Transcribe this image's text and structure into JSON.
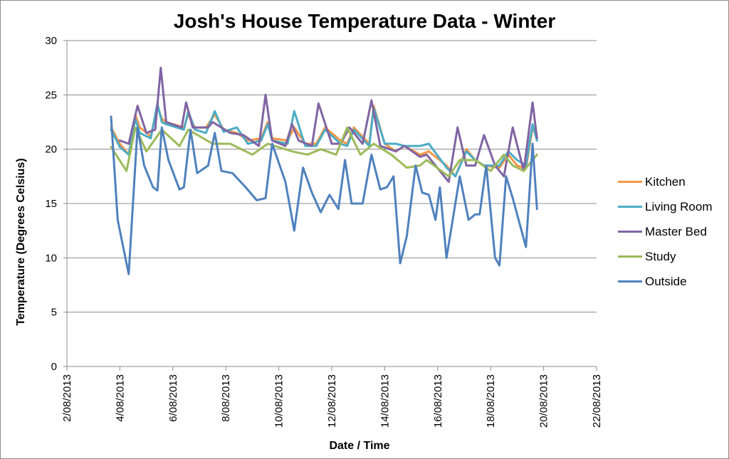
{
  "chart_data": {
    "type": "line",
    "title": "Josh's House Temperature Data - Winter",
    "xlabel": "Date / Time",
    "ylabel": "Temperature (Degrees Celsius)",
    "ylim": [
      0,
      30
    ],
    "yticks": [
      0,
      5,
      10,
      15,
      20,
      25,
      30
    ],
    "xlim": [
      "2013-08-02",
      "2013-08-22"
    ],
    "xtick_labels": [
      "2/08/2013",
      "4/08/2013",
      "6/08/2013",
      "8/08/2013",
      "10/08/2013",
      "12/08/2013",
      "14/08/2013",
      "16/08/2013",
      "18/08/2013",
      "20/08/2013",
      "22/08/2013"
    ],
    "grid": "horizontal",
    "legend": "right",
    "series": [
      {
        "name": "Kitchen",
        "color": "#f79646",
        "x": [
          "2013-08-03 16:00",
          "2013-08-04 00:00",
          "2013-08-04 08:00",
          "2013-08-04 14:00",
          "2013-08-04 18:00",
          "2013-08-05 04:00",
          "2013-08-05 10:00",
          "2013-08-05 14:00",
          "2013-08-05 18:00",
          "2013-08-06 10:00",
          "2013-08-06 14:00",
          "2013-08-06 20:00",
          "2013-08-07 06:00",
          "2013-08-07 14:00",
          "2013-08-07 22:00",
          "2013-08-08 10:00",
          "2013-08-08 20:00",
          "2013-08-09 08:00",
          "2013-08-09 14:00",
          "2013-08-09 18:00",
          "2013-08-10 08:00",
          "2013-08-10 14:00",
          "2013-08-11 00:00",
          "2013-08-11 10:00",
          "2013-08-11 18:00",
          "2013-08-12 08:00",
          "2013-08-12 14:00",
          "2013-08-12 20:00",
          "2013-08-13 10:00",
          "2013-08-13 14:00",
          "2013-08-14 00:00",
          "2013-08-14 10:00",
          "2013-08-14 18:00",
          "2013-08-15 08:00",
          "2013-08-15 16:00",
          "2013-08-16 08:00",
          "2013-08-16 16:00",
          "2013-08-17 02:00",
          "2013-08-17 10:00",
          "2013-08-17 18:00",
          "2013-08-18 08:00",
          "2013-08-18 16:00",
          "2013-08-19 00:00",
          "2013-08-19 08:00",
          "2013-08-19 14:00",
          "2013-08-19 18:00"
        ],
        "y": [
          22.0,
          20.5,
          19.5,
          23.2,
          22.0,
          21.2,
          24.0,
          22.8,
          22.5,
          22.0,
          23.2,
          22.0,
          22.0,
          23.2,
          21.8,
          21.5,
          20.8,
          21.0,
          22.5,
          21.0,
          20.8,
          22.0,
          20.5,
          20.5,
          22.0,
          20.8,
          20.5,
          22.0,
          20.5,
          24.0,
          20.5,
          19.8,
          20.3,
          19.5,
          19.8,
          18.5,
          17.5,
          20.0,
          19.0,
          18.5,
          18.3,
          19.5,
          18.5,
          18.2,
          22.0,
          21.0
        ]
      },
      {
        "name": "Living Room",
        "color": "#4bacc6",
        "x": [
          "2013-08-03 16:00",
          "2013-08-04 00:00",
          "2013-08-04 08:00",
          "2013-08-04 14:00",
          "2013-08-04 18:00",
          "2013-08-05 04:00",
          "2013-08-05 10:00",
          "2013-08-05 14:00",
          "2013-08-05 18:00",
          "2013-08-06 10:00",
          "2013-08-06 14:00",
          "2013-08-06 20:00",
          "2013-08-07 06:00",
          "2013-08-07 14:00",
          "2013-08-07 22:00",
          "2013-08-08 10:00",
          "2013-08-08 20:00",
          "2013-08-09 08:00",
          "2013-08-09 14:00",
          "2013-08-09 18:00",
          "2013-08-10 08:00",
          "2013-08-10 14:00",
          "2013-08-11 00:00",
          "2013-08-11 10:00",
          "2013-08-11 18:00",
          "2013-08-12 08:00",
          "2013-08-12 14:00",
          "2013-08-12 20:00",
          "2013-08-13 10:00",
          "2013-08-13 14:00",
          "2013-08-14 00:00",
          "2013-08-14 10:00",
          "2013-08-14 18:00",
          "2013-08-15 08:00",
          "2013-08-15 16:00",
          "2013-08-16 08:00",
          "2013-08-16 16:00",
          "2013-08-17 02:00",
          "2013-08-17 10:00",
          "2013-08-17 18:00",
          "2013-08-18 08:00",
          "2013-08-18 16:00",
          "2013-08-19 00:00",
          "2013-08-19 08:00",
          "2013-08-19 14:00",
          "2013-08-19 18:00"
        ],
        "y": [
          21.8,
          20.2,
          19.5,
          22.8,
          21.5,
          21.0,
          24.2,
          22.5,
          22.3,
          21.8,
          23.5,
          21.8,
          21.5,
          23.5,
          21.6,
          22.0,
          20.5,
          20.8,
          22.3,
          20.8,
          20.5,
          23.5,
          20.3,
          20.3,
          21.8,
          20.5,
          20.3,
          21.8,
          20.3,
          23.8,
          20.5,
          20.5,
          20.3,
          20.3,
          20.5,
          18.3,
          17.5,
          19.8,
          19.0,
          18.5,
          18.5,
          19.8,
          19.0,
          18.5,
          22.3,
          20.8
        ]
      },
      {
        "name": "Master Bed",
        "color": "#8064a2",
        "x": [
          "2013-08-04 00:00",
          "2013-08-04 08:00",
          "2013-08-04 16:00",
          "2013-08-05 00:00",
          "2013-08-05 08:00",
          "2013-08-05 13:00",
          "2013-08-05 18:00",
          "2013-08-06 08:00",
          "2013-08-06 12:00",
          "2013-08-06 18:00",
          "2013-08-07 08:00",
          "2013-08-07 12:00",
          "2013-08-08 04:00",
          "2013-08-08 16:00",
          "2013-08-09 06:00",
          "2013-08-09 12:00",
          "2013-08-09 18:00",
          "2013-08-10 06:00",
          "2013-08-10 12:00",
          "2013-08-10 18:00",
          "2013-08-11 06:00",
          "2013-08-11 12:00",
          "2013-08-12 00:00",
          "2013-08-12 08:00",
          "2013-08-12 16:00",
          "2013-08-13 04:00",
          "2013-08-13 12:00",
          "2013-08-13 20:00",
          "2013-08-14 10:00",
          "2013-08-14 18:00",
          "2013-08-15 08:00",
          "2013-08-15 14:00",
          "2013-08-15 22:00",
          "2013-08-16 10:00",
          "2013-08-16 18:00",
          "2013-08-17 02:00",
          "2013-08-17 10:00",
          "2013-08-17 18:00",
          "2013-08-18 04:00",
          "2013-08-18 12:00",
          "2013-08-18 20:00",
          "2013-08-19 06:00",
          "2013-08-19 14:00",
          "2013-08-19 18:00"
        ],
        "y": [
          20.8,
          20.5,
          24.0,
          21.5,
          21.8,
          27.5,
          22.5,
          22.0,
          24.3,
          22.0,
          22.0,
          22.5,
          21.5,
          21.3,
          20.3,
          25.0,
          20.8,
          20.3,
          22.3,
          20.8,
          20.3,
          24.2,
          20.5,
          20.5,
          22.0,
          20.5,
          24.5,
          20.3,
          19.8,
          20.3,
          19.3,
          19.5,
          18.5,
          17.0,
          22.0,
          18.5,
          18.5,
          21.3,
          18.5,
          17.5,
          22.0,
          18.0,
          24.3,
          21.0
        ]
      },
      {
        "name": "Study",
        "color": "#9bbb59",
        "x": [
          "2013-08-03 16:00",
          "2013-08-04 06:00",
          "2013-08-04 14:00",
          "2013-08-05 00:00",
          "2013-08-05 14:00",
          "2013-08-06 06:00",
          "2013-08-06 14:00",
          "2013-08-07 12:00",
          "2013-08-08 04:00",
          "2013-08-09 00:00",
          "2013-08-09 14:00",
          "2013-08-10 12:00",
          "2013-08-11 02:00",
          "2013-08-11 14:00",
          "2013-08-12 04:00",
          "2013-08-12 14:00",
          "2013-08-13 02:00",
          "2013-08-13 14:00",
          "2013-08-14 06:00",
          "2013-08-14 20:00",
          "2013-08-15 08:00",
          "2013-08-15 14:00",
          "2013-08-16 10:00",
          "2013-08-16 20:00",
          "2013-08-17 10:00",
          "2013-08-18 00:00",
          "2013-08-18 12:00",
          "2013-08-18 20:00",
          "2013-08-19 06:00",
          "2013-08-19 18:00"
        ],
        "y": [
          20.2,
          18.0,
          22.0,
          19.8,
          21.8,
          20.3,
          21.8,
          20.5,
          20.5,
          19.5,
          20.5,
          19.8,
          19.5,
          20.0,
          19.5,
          22.0,
          19.5,
          20.5,
          19.5,
          18.3,
          18.5,
          19.0,
          17.5,
          19.0,
          19.0,
          18.0,
          19.5,
          18.5,
          18.0,
          19.5
        ]
      },
      {
        "name": "Outside",
        "color": "#4f81bd",
        "x": [
          "2013-08-03 16:00",
          "2013-08-03 22:00",
          "2013-08-04 04:00",
          "2013-08-04 08:00",
          "2013-08-04 16:00",
          "2013-08-04 22:00",
          "2013-08-05 06:00",
          "2013-08-05 10:00",
          "2013-08-05 14:00",
          "2013-08-05 20:00",
          "2013-08-06 06:00",
          "2013-08-06 10:00",
          "2013-08-06 16:00",
          "2013-08-06 22:00",
          "2013-08-07 08:00",
          "2013-08-07 14:00",
          "2013-08-07 20:00",
          "2013-08-08 06:00",
          "2013-08-08 18:00",
          "2013-08-09 04:00",
          "2013-08-09 12:00",
          "2013-08-09 18:00",
          "2013-08-10 06:00",
          "2013-08-10 14:00",
          "2013-08-10 22:00",
          "2013-08-11 06:00",
          "2013-08-11 14:00",
          "2013-08-11 22:00",
          "2013-08-12 06:00",
          "2013-08-12 12:00",
          "2013-08-12 18:00",
          "2013-08-13 04:00",
          "2013-08-13 12:00",
          "2013-08-13 20:00",
          "2013-08-14 02:00",
          "2013-08-14 08:00",
          "2013-08-14 14:00",
          "2013-08-14 20:00",
          "2013-08-15 04:00",
          "2013-08-15 10:00",
          "2013-08-15 16:00",
          "2013-08-15 22:00",
          "2013-08-16 02:00",
          "2013-08-16 08:00",
          "2013-08-16 12:00",
          "2013-08-16 20:00",
          "2013-08-17 04:00",
          "2013-08-17 10:00",
          "2013-08-17 14:00",
          "2013-08-17 20:00",
          "2013-08-18 04:00",
          "2013-08-18 08:00",
          "2013-08-18 14:00",
          "2013-08-18 20:00",
          "2013-08-19 04:00",
          "2013-08-19 08:00",
          "2013-08-19 14:00",
          "2013-08-19 18:00"
        ],
        "y": [
          23.0,
          13.5,
          10.5,
          8.5,
          22.0,
          18.5,
          16.5,
          16.2,
          22.0,
          19.0,
          16.3,
          16.5,
          21.8,
          17.8,
          18.5,
          21.5,
          18.0,
          17.8,
          16.5,
          15.3,
          15.5,
          20.5,
          17.0,
          12.5,
          18.3,
          16.0,
          14.2,
          15.8,
          14.5,
          19.0,
          15.0,
          15.0,
          19.5,
          16.3,
          16.5,
          17.5,
          9.5,
          12.0,
          18.5,
          16.0,
          15.8,
          13.5,
          16.5,
          10.0,
          12.5,
          17.5,
          13.5,
          14.0,
          14.0,
          18.5,
          10.0,
          9.3,
          17.5,
          15.5,
          12.5,
          11.0,
          20.5,
          14.5
        ]
      }
    ]
  }
}
